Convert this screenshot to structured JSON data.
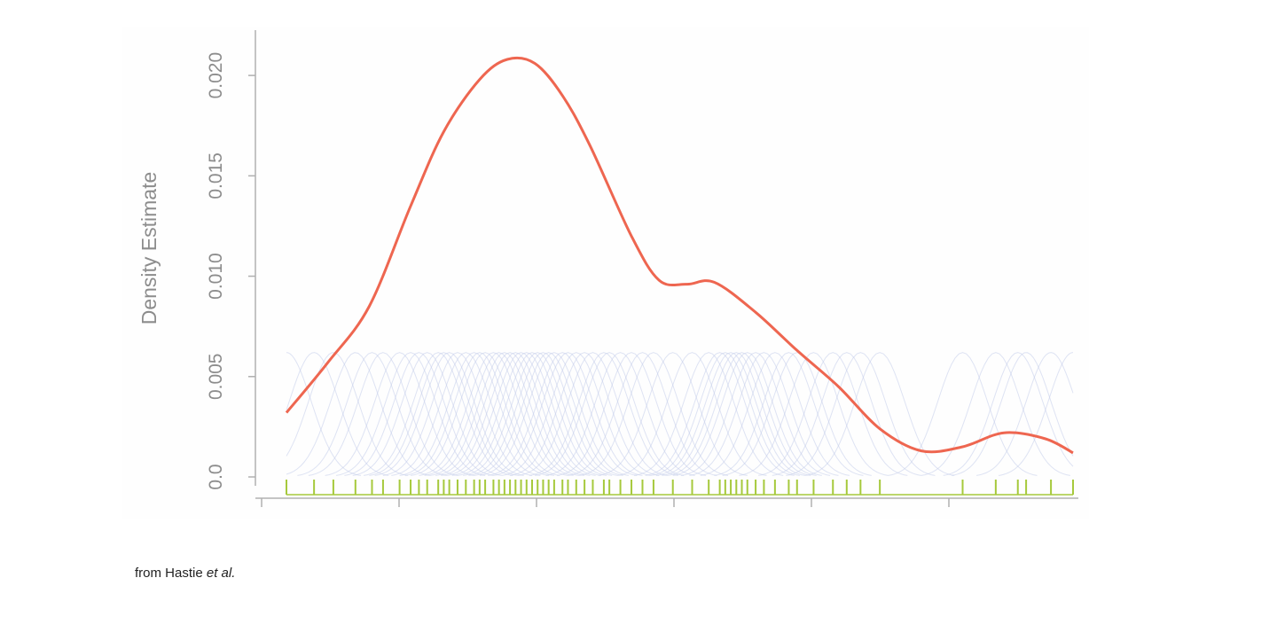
{
  "chart_data": {
    "type": "line",
    "title": "",
    "xlabel": "",
    "ylabel": "Density Estimate",
    "ylim": [
      0,
      0.0215
    ],
    "yticks": [
      0.0,
      0.005,
      0.01,
      0.015,
      0.02
    ],
    "ytick_labels": [
      "0.0",
      "0.005",
      "0.010",
      "0.015",
      "0.020"
    ],
    "xlim": [
      -0.05,
      2.85
    ],
    "xticks": [
      0,
      0.5,
      1.0,
      1.5,
      2.0,
      2.5
    ],
    "xtick_labels": [],
    "grid": false,
    "legend": "none",
    "kernel_bandwidth": 0.09,
    "kernel_peak": 0.0062,
    "colors": {
      "density_curve": "#ee6650",
      "kernels": "#c3cce9",
      "rug": "#a6c93c",
      "axis": "#b0b0b0"
    },
    "series": [
      {
        "role": "density",
        "x": [
          0.05,
          0.2,
          0.35,
          0.5,
          0.62,
          0.75,
          0.85,
          0.95,
          1.05,
          1.15,
          1.3,
          1.4,
          1.5,
          1.6,
          1.75,
          1.9,
          2.05,
          2.2,
          2.35,
          2.5,
          2.65,
          2.8,
          2.9
        ],
        "y": [
          0.0032,
          0.0057,
          0.0085,
          0.0135,
          0.0172,
          0.0198,
          0.0208,
          0.0206,
          0.019,
          0.0165,
          0.012,
          0.0098,
          0.0096,
          0.0097,
          0.0082,
          0.0063,
          0.0045,
          0.0024,
          0.0013,
          0.0015,
          0.0022,
          0.0019,
          0.0012
        ]
      }
    ],
    "observations": [
      0.05,
      0.15,
      0.22,
      0.3,
      0.36,
      0.4,
      0.46,
      0.5,
      0.53,
      0.56,
      0.6,
      0.62,
      0.64,
      0.67,
      0.7,
      0.73,
      0.75,
      0.77,
      0.8,
      0.82,
      0.84,
      0.86,
      0.88,
      0.9,
      0.92,
      0.94,
      0.96,
      0.98,
      1.0,
      1.02,
      1.05,
      1.07,
      1.1,
      1.13,
      1.16,
      1.2,
      1.22,
      1.26,
      1.3,
      1.34,
      1.38,
      1.45,
      1.52,
      1.58,
      1.62,
      1.64,
      1.66,
      1.68,
      1.7,
      1.72,
      1.75,
      1.78,
      1.82,
      1.87,
      1.9,
      1.96,
      2.03,
      2.08,
      2.13,
      2.2,
      2.5,
      2.62,
      2.7,
      2.73,
      2.82,
      2.9
    ]
  },
  "caption": {
    "prefix": "from Hastie ",
    "emphasis": "et al."
  }
}
